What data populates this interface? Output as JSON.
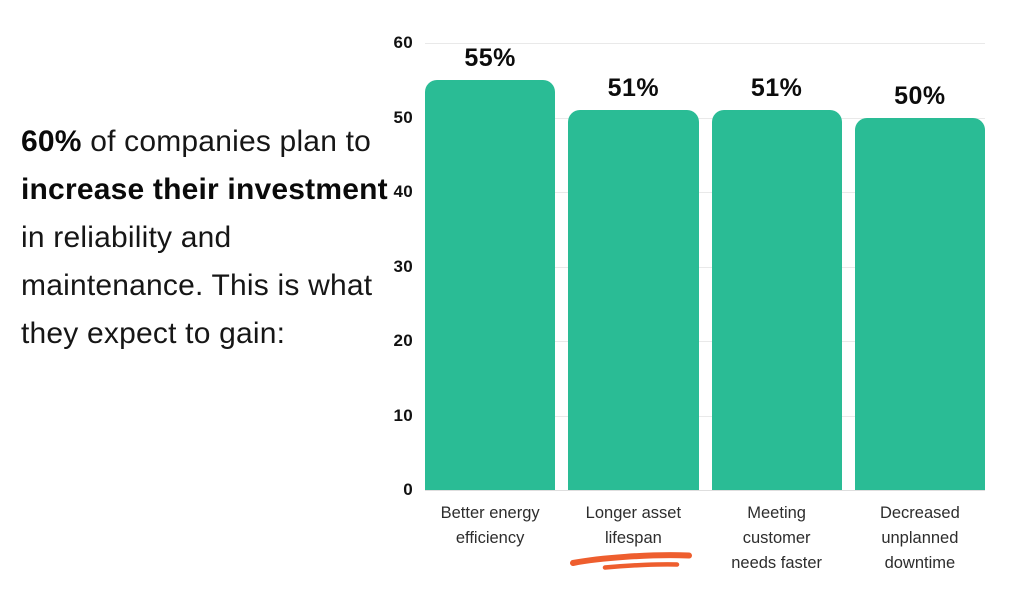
{
  "intro": {
    "seg1_bold": "60%",
    "seg2": " of companies plan to ",
    "seg3_bold": "increase their investment",
    "seg4": " in reliability and maintenance. This is what they expect to gain:"
  },
  "chart_data": {
    "type": "bar",
    "categories": [
      "Better energy\nefficiency",
      "Longer asset\nlifespan",
      "Meeting\ncustomer\nneeds faster",
      "Decreased\nunplanned\ndowntime"
    ],
    "values": [
      55,
      51,
      51,
      50
    ],
    "value_labels": [
      "55%",
      "51%",
      "51%",
      "50%"
    ],
    "unit": "%",
    "title": "",
    "xlabel": "",
    "ylabel": "",
    "ylim": [
      0,
      60
    ],
    "yticks": [
      0,
      10,
      20,
      30,
      40,
      50,
      60
    ],
    "grid": "horizontal",
    "legend": "none",
    "bar_color": "#2ABC95",
    "annotation": "hand-drawn orange underline under 'Longer asset lifespan'",
    "underline_category_index": 1,
    "underline_color": "#EE5E2E"
  }
}
